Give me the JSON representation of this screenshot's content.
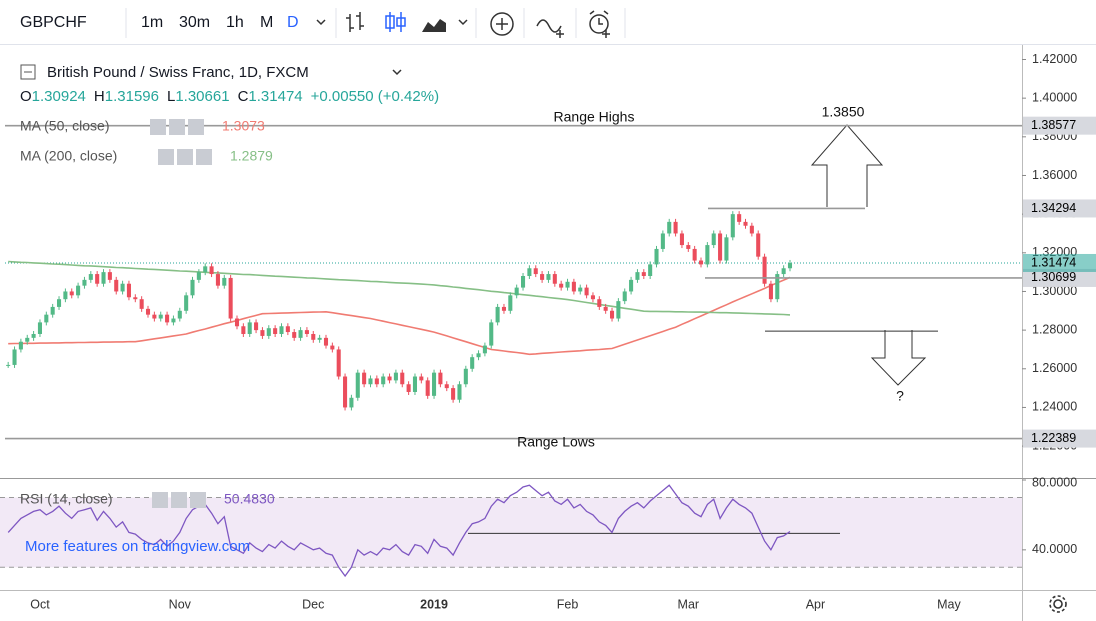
{
  "toolbar": {
    "symbol": "GBPCHF",
    "intervals": [
      "1m",
      "30m",
      "1h",
      "M",
      "D"
    ]
  },
  "legend": {
    "ohlc": [
      {
        "label": "O",
        "value": "1.30924"
      },
      {
        "label": "H",
        "value": "1.31596"
      },
      {
        "label": "L",
        "value": "1.30661"
      },
      {
        "label": "C",
        "value": "1.31474"
      }
    ],
    "change": "+0.00550 (+0.42%)"
  },
  "watermark": "More features on tradingview.com",
  "chart_data": {
    "type": "candlestick",
    "title": "British Pound / Swiss Franc, 1D, FXCM",
    "up_color": "#53b987",
    "down_color": "#eb4d5c",
    "categories": [
      null,
      null,
      null,
      null,
      null,
      "Oct",
      null,
      null,
      null,
      null,
      null,
      null,
      null,
      null,
      null,
      null,
      null,
      null,
      null,
      null,
      null,
      null,
      null,
      null,
      null,
      null,
      null,
      "Nov",
      null,
      null,
      null,
      null,
      null,
      null,
      null,
      null,
      null,
      null,
      null,
      null,
      null,
      null,
      null,
      null,
      null,
      null,
      null,
      null,
      "Dec",
      null,
      null,
      null,
      null,
      null,
      null,
      null,
      null,
      null,
      null,
      null,
      null,
      null,
      null,
      null,
      null,
      null,
      null,
      "2019",
      null,
      null,
      null,
      null,
      null,
      null,
      null,
      null,
      null,
      null,
      null,
      null,
      null,
      null,
      null,
      null,
      null,
      null,
      null,
      null,
      "Feb",
      null,
      null,
      null,
      null,
      null,
      null,
      null,
      null,
      null,
      null,
      null,
      null,
      null,
      null,
      null,
      null,
      null,
      null,
      "Mar",
      null,
      null,
      null,
      null,
      null,
      null,
      null,
      null,
      null,
      null,
      null,
      null,
      null,
      null,
      null,
      null,
      null,
      null,
      null,
      "Apr",
      null,
      null,
      null,
      null,
      null,
      null,
      null,
      null,
      null,
      null,
      null,
      null,
      null,
      null,
      null,
      null,
      null,
      null,
      null,
      null,
      "May",
      null,
      null,
      null,
      null,
      null,
      null,
      null,
      null,
      null,
      null,
      null
    ],
    "series": [
      {
        "name": "GBPCHF",
        "values": [
          1.262,
          1.27,
          1.274,
          1.276,
          1.278,
          1.284,
          1.288,
          1.292,
          1.296,
          1.3,
          1.298,
          1.303,
          1.306,
          1.309,
          1.304,
          1.31,
          1.306,
          1.3,
          1.304,
          1.297,
          1.296,
          1.291,
          1.288,
          1.286,
          1.288,
          1.284,
          1.286,
          1.29,
          1.298,
          1.306,
          1.31,
          1.313,
          1.309,
          1.303,
          1.307,
          1.286,
          1.282,
          1.278,
          1.284,
          1.28,
          1.277,
          1.281,
          1.278,
          1.282,
          1.279,
          1.276,
          1.28,
          1.278,
          1.275,
          1.276,
          1.272,
          1.27,
          1.256,
          1.24,
          1.245,
          1.258,
          1.252,
          1.255,
          1.252,
          1.256,
          1.254,
          1.258,
          1.252,
          1.248,
          1.256,
          1.254,
          1.246,
          1.258,
          1.252,
          1.25,
          1.244,
          1.252,
          1.26,
          1.266,
          1.268,
          1.272,
          1.284,
          1.292,
          1.29,
          1.298,
          1.302,
          1.308,
          1.312,
          1.309,
          1.306,
          1.309,
          1.304,
          1.302,
          1.305,
          1.3,
          1.302,
          1.298,
          1.296,
          1.292,
          1.29,
          1.286,
          1.295,
          1.3,
          1.306,
          1.31,
          1.308,
          1.314,
          1.322,
          1.33,
          1.336,
          1.33,
          1.324,
          1.322,
          1.316,
          1.314,
          1.324,
          1.33,
          1.316,
          1.328,
          1.34,
          1.336,
          1.334,
          1.33,
          1.318,
          1.304,
          1.296,
          1.309,
          1.312,
          1.31474,
          null,
          null,
          null,
          null,
          null,
          null,
          null,
          null,
          null,
          null,
          null,
          null,
          null,
          null,
          null,
          null,
          null,
          null,
          null,
          null,
          null,
          null,
          null,
          null,
          null,
          null,
          null,
          null,
          null,
          null,
          null,
          null,
          null,
          null,
          null,
          null
        ]
      },
      {
        "name": "MA (50, close)",
        "color": "#f07b72",
        "value_label": "1.3073",
        "values": [
          1.273,
          1.2731,
          1.2731,
          1.2732,
          1.2732,
          1.2733,
          1.2733,
          1.2734,
          1.2734,
          1.2735,
          1.2735,
          1.2736,
          1.2736,
          1.2737,
          1.2737,
          1.2738,
          1.2738,
          1.2739,
          1.2739,
          1.274,
          1.274,
          1.2745,
          1.275,
          1.2755,
          1.276,
          1.2765,
          1.277,
          1.2775,
          1.278,
          1.2789,
          1.2798,
          1.2806,
          1.2815,
          1.2824,
          1.2833,
          1.2841,
          1.285,
          1.2859,
          1.2868,
          1.2876,
          1.2885,
          1.2886,
          1.2887,
          1.2888,
          1.2889,
          1.289,
          1.2891,
          1.2892,
          1.2893,
          1.2894,
          1.2895,
          1.289,
          1.2885,
          1.288,
          1.2875,
          1.287,
          1.2865,
          1.286,
          1.2853,
          1.2846,
          1.2839,
          1.2832,
          1.2825,
          1.2818,
          1.2811,
          1.2804,
          1.2797,
          1.279,
          1.278,
          1.277,
          1.276,
          1.275,
          1.274,
          1.273,
          1.272,
          1.271,
          1.27,
          1.2696,
          1.2692,
          1.2688,
          1.2684,
          1.268,
          1.2675,
          1.2677,
          1.268,
          1.2682,
          1.2684,
          1.2687,
          1.2689,
          1.2691,
          1.2693,
          1.2696,
          1.2698,
          1.27,
          1.2703,
          1.2705,
          1.2716,
          1.2727,
          1.2738,
          1.2749,
          1.276,
          1.2771,
          1.2782,
          1.2793,
          1.2804,
          1.2815,
          1.283,
          1.2844,
          1.2859,
          1.2873,
          1.2888,
          1.2902,
          1.2917,
          1.2931,
          1.2946,
          1.296,
          1.2974,
          1.2988,
          1.3002,
          1.3016,
          1.3031,
          1.3045,
          1.3059,
          1.3073,
          null,
          null,
          null,
          null,
          null,
          null,
          null,
          null,
          null,
          null,
          null,
          null,
          null,
          null,
          null,
          null,
          null,
          null,
          null,
          null,
          null,
          null,
          null,
          null,
          null,
          null,
          null,
          null,
          null,
          null,
          null,
          null,
          null,
          null,
          null,
          null
        ]
      },
      {
        "name": "MA (200, close)",
        "color": "#86bf86",
        "value_label": "1.2879",
        "values": [
          1.3155,
          1.3153,
          1.3151,
          1.315,
          1.3148,
          1.3146,
          1.3144,
          1.3142,
          1.3141,
          1.3139,
          1.3137,
          1.3135,
          1.3133,
          1.3132,
          1.313,
          1.3128,
          1.3126,
          1.3124,
          1.3123,
          1.3121,
          1.3119,
          1.3117,
          1.3115,
          1.3114,
          1.3112,
          1.311,
          1.3108,
          1.3106,
          1.3105,
          1.3103,
          1.3101,
          1.3099,
          1.3097,
          1.3096,
          1.3094,
          1.3092,
          1.309,
          1.3088,
          1.3087,
          1.3085,
          1.3083,
          1.3081,
          1.3079,
          1.3078,
          1.3076,
          1.3074,
          1.3072,
          1.307,
          1.3069,
          1.3067,
          1.3065,
          1.3063,
          1.3061,
          1.306,
          1.3058,
          1.3056,
          1.3054,
          1.3052,
          1.3051,
          1.3049,
          1.3047,
          1.3045,
          1.3043,
          1.3042,
          1.304,
          1.3038,
          1.3036,
          1.3034,
          1.303,
          1.3027,
          1.3023,
          1.302,
          1.3016,
          1.3012,
          1.3009,
          1.3005,
          1.3001,
          1.2998,
          1.2994,
          1.2991,
          1.2987,
          1.2983,
          1.298,
          1.2976,
          1.2973,
          1.2969,
          1.2965,
          1.2962,
          1.2958,
          1.2953,
          1.2948,
          1.2943,
          1.2938,
          1.2933,
          1.2928,
          1.2923,
          1.2918,
          1.2913,
          1.2908,
          1.2903,
          1.2898,
          1.2897,
          1.2897,
          1.2896,
          1.2896,
          1.2895,
          1.2895,
          1.2894,
          1.2893,
          1.2893,
          1.2892,
          1.2891,
          1.289,
          1.289,
          1.2889,
          1.2888,
          1.2887,
          1.2886,
          1.2885,
          1.2884,
          1.2883,
          1.2882,
          1.2881,
          1.2879,
          null,
          null,
          null,
          null,
          null,
          null,
          null,
          null,
          null,
          null,
          null,
          null,
          null,
          null,
          null,
          null,
          null,
          null,
          null,
          null,
          null,
          null,
          null,
          null,
          null,
          null,
          null,
          null,
          null,
          null,
          null,
          null,
          null,
          null,
          null,
          null
        ]
      }
    ],
    "ylim": [
      1.2035,
      1.4275
    ],
    "yticks": [
      {
        "value": 1.42,
        "label": "1.42000"
      },
      {
        "value": 1.4,
        "label": "1.40000"
      },
      {
        "value": 1.38,
        "label": "1.38000"
      },
      {
        "value": 1.36,
        "label": "1.36000"
      },
      {
        "value": 1.34,
        "label": "1.34000"
      },
      {
        "value": 1.32,
        "label": "1.32000"
      },
      {
        "value": 1.3,
        "label": "1.30000"
      },
      {
        "value": 1.28,
        "label": "1.28000"
      },
      {
        "value": 1.26,
        "label": "1.26000"
      },
      {
        "value": 1.24,
        "label": "1.24000"
      },
      {
        "value": 1.22,
        "label": "1.22000"
      }
    ],
    "grid": false,
    "levels": [
      {
        "value": 1.38577,
        "label": "1.38577"
      },
      {
        "value": 1.34294,
        "label": "1.34294"
      },
      {
        "value": 1.30699,
        "label": "1.30699"
      },
      {
        "value": 1.22389,
        "label": "1.22389"
      },
      {
        "value": 1.2795
      }
    ],
    "last_price": {
      "value": 1.31474,
      "label": "1.31474",
      "color": "#26a69a"
    },
    "annotations": [
      "Range Highs",
      "Range Lows",
      "1.3850",
      "?"
    ],
    "rsi": {
      "name": "RSI (14, close)",
      "color": "#7e57c2",
      "value_label": "50.4830",
      "ylim": [
        17,
        80
      ],
      "yticks": [
        {
          "value": 80,
          "label": "80.0000"
        },
        {
          "value": 40,
          "label": "40.0000"
        }
      ],
      "band": [
        30,
        70
      ],
      "level": 49.4,
      "values": [
        50,
        54,
        58,
        60,
        62,
        63,
        60,
        62,
        65,
        61,
        58,
        62,
        63,
        64,
        57,
        62,
        58,
        53,
        56,
        50,
        49,
        46,
        44,
        43,
        46,
        42,
        45,
        50,
        58,
        63,
        65,
        66,
        61,
        55,
        59,
        42,
        40,
        38,
        44,
        41,
        39,
        43,
        41,
        45,
        42,
        40,
        44,
        42,
        40,
        41,
        38,
        37,
        30,
        25,
        30,
        40,
        37,
        39,
        37,
        41,
        40,
        43,
        39,
        37,
        43,
        42,
        38,
        46,
        42,
        41,
        37,
        44,
        50,
        55,
        56,
        58,
        65,
        69,
        67,
        71,
        73,
        76,
        77,
        74,
        71,
        73,
        68,
        66,
        69,
        64,
        66,
        62,
        60,
        56,
        54,
        50,
        58,
        62,
        65,
        67,
        64,
        68,
        71,
        74,
        77,
        72,
        67,
        65,
        61,
        59,
        66,
        69,
        58,
        64,
        69,
        66,
        64,
        61,
        53,
        45,
        40,
        47,
        48,
        50.483,
        null,
        null,
        null,
        null,
        null,
        null,
        null,
        null,
        null,
        null,
        null,
        null,
        null,
        null,
        null,
        null,
        null,
        null,
        null,
        null,
        null,
        null,
        null,
        null,
        null,
        null,
        null,
        null,
        null,
        null,
        null,
        null,
        null,
        null,
        null,
        null
      ]
    }
  }
}
